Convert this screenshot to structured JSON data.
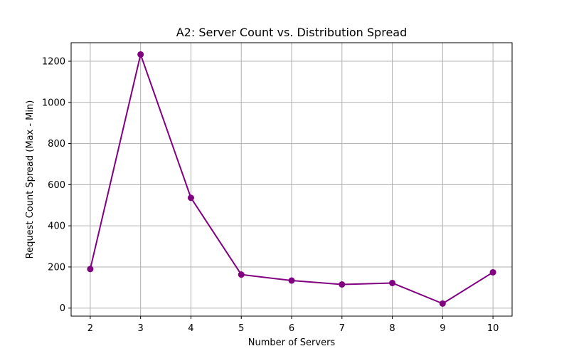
{
  "chart_data": {
    "type": "line",
    "title": "A2: Server Count vs. Distribution Spread",
    "xlabel": "Number of Servers",
    "ylabel": "Request Count Spread (Max - Min)",
    "x": [
      2,
      3,
      4,
      5,
      6,
      7,
      8,
      9,
      10
    ],
    "series": [
      {
        "values": [
          190,
          1233,
          536,
          163,
          134,
          115,
          122,
          22,
          174
        ],
        "color": "#800080"
      }
    ],
    "xticks": [
      "2",
      "3",
      "4",
      "5",
      "6",
      "7",
      "8",
      "9",
      "10"
    ],
    "yticks": [
      "0",
      "200",
      "400",
      "600",
      "800",
      "1000",
      "1200"
    ],
    "xlim": [
      1.62,
      10.38
    ],
    "ylim": [
      -39,
      1290
    ],
    "grid": true,
    "marker": "circle"
  }
}
